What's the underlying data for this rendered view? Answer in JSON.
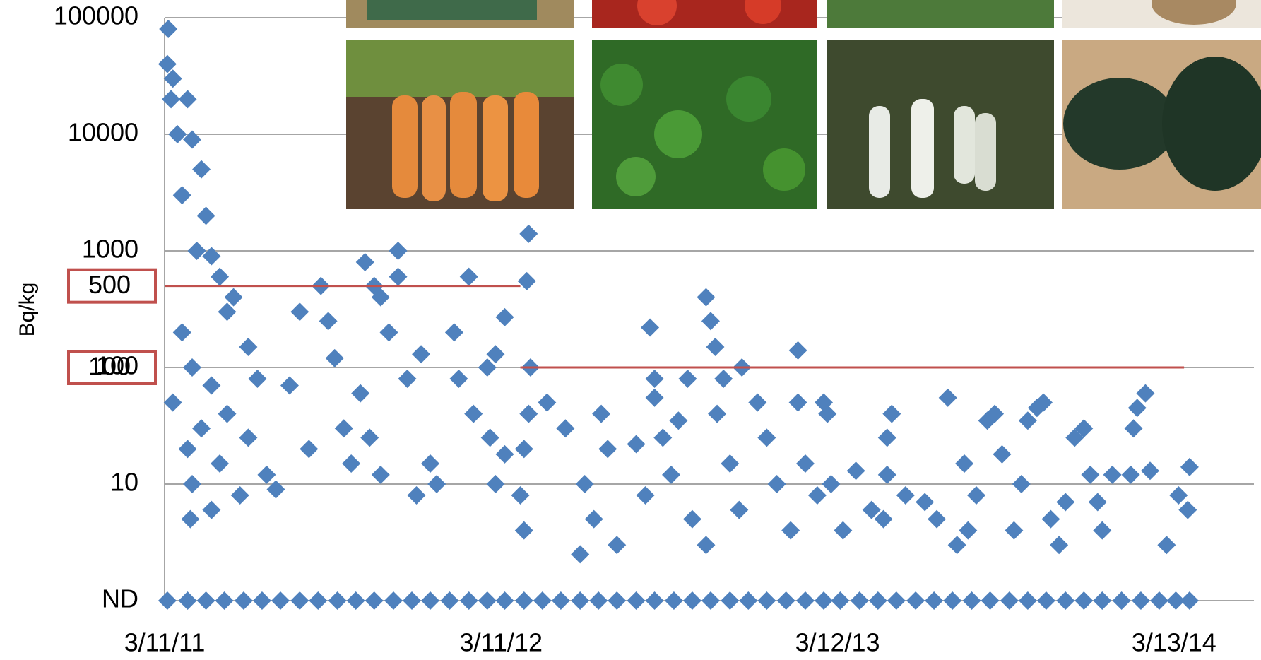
{
  "chart_data": {
    "type": "scatter",
    "y_label": "Bq/kg",
    "log_y": true,
    "grid": true,
    "color": "#4f81bd",
    "ylim": [
      1,
      100000
    ],
    "yticks": [
      {
        "value": 1,
        "label": "ND"
      },
      10,
      100,
      1000,
      10000,
      100000
    ],
    "xlim": [
      "2011-03-11",
      "2014-06-08"
    ],
    "xticks": [
      {
        "value": "2011-03-11",
        "label": "3/11/11"
      },
      {
        "value": "2012-03-11",
        "label": "3/11/12"
      },
      {
        "value": "2013-03-12",
        "label": "3/12/13"
      },
      {
        "value": "2014-03-13",
        "label": "3/13/14"
      }
    ],
    "reference_lines": [
      {
        "value": 500,
        "x": [
          "2011-03-11",
          "2012-04-01"
        ],
        "color": "#c0504d"
      },
      {
        "value": 100,
        "x": [
          "2012-04-01",
          "2014-03-24"
        ],
        "color": "#c0504d"
      }
    ],
    "x": [
      "2011-03-15",
      "2011-03-14",
      "2011-03-20",
      "2011-03-18",
      "2011-04-05",
      "2011-03-25",
      "2011-04-10",
      "2011-04-20",
      "2011-03-30",
      "2011-04-25",
      "2011-04-15",
      "2011-05-01",
      "2011-05-10",
      "2011-05-25",
      "2011-05-18",
      "2011-03-30",
      "2011-06-10",
      "2011-04-10",
      "2011-05-01",
      "2011-06-20",
      "2011-03-20",
      "2011-05-18",
      "2011-04-20",
      "2011-06-10",
      "2011-04-05",
      "2011-05-10",
      "2011-06-30",
      "2011-04-10",
      "2011-06-01",
      "2011-04-08",
      "2011-05-01",
      "2011-07-10",
      "2011-07-25",
      "2011-08-05",
      "2011-08-28",
      "2011-09-05",
      "2011-09-12",
      "2011-09-22",
      "2011-08-15",
      "2011-09-30",
      "2011-10-15",
      "2011-10-25",
      "2011-11-01",
      "2011-11-20",
      "2011-11-20",
      "2011-11-10",
      "2011-11-30",
      "2011-10-10",
      "2011-10-20",
      "2011-11-01",
      "2011-12-10",
      "2011-12-15",
      "2011-12-25",
      "2012-01-01",
      "2012-01-20",
      "2012-01-25",
      "2012-02-05",
      "2012-02-25",
      "2012-03-05",
      "2012-03-15",
      "2012-02-10",
      "2012-02-28",
      "2012-03-05",
      "2012-03-15",
      "2012-04-10",
      "2012-04-08",
      "2012-04-12",
      "2012-04-10",
      "2012-04-05",
      "2012-04-01",
      "2012-04-05",
      "2012-04-30",
      "2012-05-20",
      "2012-06-05",
      "2012-06-10",
      "2012-06-28",
      "2012-07-05",
      "2012-06-20",
      "2012-07-15",
      "2012-08-05",
      "2012-08-15",
      "2012-08-20",
      "2012-08-25",
      "2012-08-25",
      "2012-09-03",
      "2012-09-12",
      "2012-09-20",
      "2012-09-30",
      "2012-10-05",
      "2012-10-20",
      "2012-10-25",
      "2012-10-30",
      "2012-11-08",
      "2012-10-20",
      "2012-11-01",
      "2012-11-15",
      "2012-11-25",
      "2012-11-28",
      "2012-12-15",
      "2012-12-25",
      "2013-01-05",
      "2013-01-20",
      "2013-01-28",
      "2013-01-28",
      "2013-02-25",
      "2013-03-01",
      "2013-02-05",
      "2013-02-18",
      "2013-03-05",
      "2013-03-18",
      "2013-04-01",
      "2013-04-18",
      "2013-05-01",
      "2013-05-05",
      "2013-05-10",
      "2013-05-05",
      "2013-05-25",
      "2013-06-15",
      "2013-06-28",
      "2013-07-10",
      "2013-07-20",
      "2013-07-28",
      "2013-08-01",
      "2013-08-10",
      "2013-08-22",
      "2013-08-30",
      "2013-09-07",
      "2013-09-20",
      "2013-09-28",
      "2013-10-05",
      "2013-10-15",
      "2013-10-22",
      "2013-10-30",
      "2013-11-08",
      "2013-11-15",
      "2013-11-25",
      "2013-12-05",
      "2013-12-12",
      "2013-12-20",
      "2013-12-25",
      "2014-01-05",
      "2014-01-25",
      "2014-01-28",
      "2014-02-01",
      "2014-02-10",
      "2014-02-15",
      "2014-03-05",
      "2014-03-18",
      "2014-03-28",
      "2014-03-30",
      "2011-03-14",
      "2011-04-05",
      "2011-04-25",
      "2011-05-15",
      "2011-06-05",
      "2011-06-25",
      "2011-07-15",
      "2011-08-05",
      "2011-08-25",
      "2011-09-15",
      "2011-10-05",
      "2011-10-25",
      "2011-11-15",
      "2011-12-05",
      "2011-12-25",
      "2012-01-15",
      "2012-02-05",
      "2012-02-25",
      "2012-03-15",
      "2012-04-05",
      "2012-04-25",
      "2012-05-15",
      "2012-06-05",
      "2012-06-25",
      "2012-07-15",
      "2012-08-05",
      "2012-08-25",
      "2012-09-15",
      "2012-10-05",
      "2012-10-25",
      "2012-11-15",
      "2012-12-05",
      "2012-12-25",
      "2013-01-15",
      "2013-02-05",
      "2013-02-25",
      "2013-03-15",
      "2013-04-05",
      "2013-04-25",
      "2013-05-15",
      "2013-06-05",
      "2013-06-25",
      "2013-07-15",
      "2013-08-05",
      "2013-08-25",
      "2013-09-15",
      "2013-10-05",
      "2013-10-25",
      "2013-11-15",
      "2013-12-05",
      "2013-12-25",
      "2014-01-15",
      "2014-02-05",
      "2014-02-25",
      "2014-03-15",
      "2014-03-30"
    ],
    "values": [
      80000,
      40000,
      30000,
      20000,
      20000,
      10000,
      9000,
      5000,
      3000,
      2000,
      1000,
      900,
      600,
      400,
      300,
      200,
      150,
      100,
      70,
      80,
      50,
      40,
      30,
      25,
      20,
      15,
      12,
      10,
      8,
      5,
      6,
      9,
      70,
      300,
      500,
      250,
      120,
      30,
      20,
      15,
      800,
      500,
      400,
      1000,
      600,
      200,
      80,
      60,
      25,
      12,
      8,
      130,
      15,
      10,
      200,
      80,
      600,
      100,
      130,
      270,
      40,
      25,
      10,
      18,
      1400,
      550,
      100,
      40,
      20,
      8,
      4,
      50,
      30,
      2.5,
      10,
      40,
      20,
      5,
      3,
      22,
      8,
      220,
      80,
      55,
      25,
      12,
      35,
      80,
      5,
      400,
      250,
      150,
      80,
      3,
      40,
      15,
      6,
      100,
      50,
      25,
      10,
      4,
      140,
      50,
      50,
      40,
      15,
      8,
      10,
      4,
      13,
      6,
      5,
      25,
      40,
      12,
      8,
      7,
      5,
      55,
      3,
      15,
      4,
      8,
      35,
      40,
      18,
      4,
      10,
      35,
      45,
      50,
      5,
      3,
      7,
      25,
      30,
      12,
      7,
      4,
      12,
      12,
      30,
      45,
      60,
      13,
      3,
      8,
      6,
      14,
      1,
      1,
      1,
      1,
      1,
      1,
      1,
      1,
      1,
      1,
      1,
      1,
      1,
      1,
      1,
      1,
      1,
      1,
      1,
      1,
      1,
      1,
      1,
      1,
      1,
      1,
      1,
      1,
      1,
      1,
      1,
      1,
      1,
      1,
      1,
      1,
      1,
      1,
      1,
      1,
      1,
      1,
      1,
      1,
      1,
      1,
      1,
      1,
      1,
      1,
      1,
      1,
      1,
      1,
      1,
      1
    ]
  }
}
